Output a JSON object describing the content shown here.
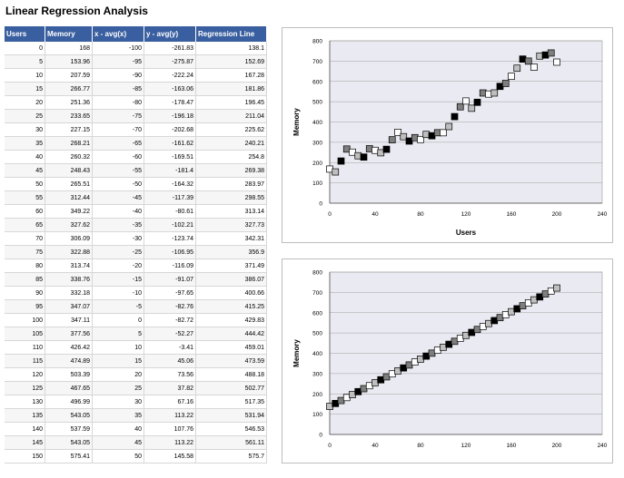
{
  "page": {
    "title": "Linear Regression Analysis"
  },
  "table": {
    "headers": [
      "Users",
      "Memory",
      "x - avg(x)",
      "y - avg(y)",
      "Regression Line"
    ],
    "rows": [
      [
        "0",
        "168",
        "-100",
        "-261.83",
        "138.1"
      ],
      [
        "5",
        "153.96",
        "-95",
        "-275.87",
        "152.69"
      ],
      [
        "10",
        "207.59",
        "-90",
        "-222.24",
        "167.28"
      ],
      [
        "15",
        "266.77",
        "-85",
        "-163.06",
        "181.86"
      ],
      [
        "20",
        "251.36",
        "-80",
        "-178.47",
        "196.45"
      ],
      [
        "25",
        "233.65",
        "-75",
        "-196.18",
        "211.04"
      ],
      [
        "30",
        "227.15",
        "-70",
        "-202.68",
        "225.62"
      ],
      [
        "35",
        "268.21",
        "-65",
        "-161.62",
        "240.21"
      ],
      [
        "40",
        "260.32",
        "-60",
        "-169.51",
        "254.8"
      ],
      [
        "45",
        "248.43",
        "-55",
        "-181.4",
        "269.38"
      ],
      [
        "50",
        "265.51",
        "-50",
        "-164.32",
        "283.97"
      ],
      [
        "55",
        "312.44",
        "-45",
        "-117.39",
        "298.55"
      ],
      [
        "60",
        "349.22",
        "-40",
        "-80.61",
        "313.14"
      ],
      [
        "65",
        "327.62",
        "-35",
        "-102.21",
        "327.73"
      ],
      [
        "70",
        "306.09",
        "-30",
        "-123.74",
        "342.31"
      ],
      [
        "75",
        "322.88",
        "-25",
        "-106.95",
        "356.9"
      ],
      [
        "80",
        "313.74",
        "-20",
        "-116.09",
        "371.49"
      ],
      [
        "85",
        "338.76",
        "-15",
        "-91.07",
        "386.07"
      ],
      [
        "90",
        "332.18",
        "-10",
        "-97.65",
        "400.66"
      ],
      [
        "95",
        "347.07",
        "-5",
        "-82.76",
        "415.25"
      ],
      [
        "100",
        "347.11",
        "0",
        "-82.72",
        "429.83"
      ],
      [
        "105",
        "377.56",
        "5",
        "-52.27",
        "444.42"
      ],
      [
        "110",
        "426.42",
        "10",
        "-3.41",
        "459.01"
      ],
      [
        "115",
        "474.89",
        "15",
        "45.06",
        "473.59"
      ],
      [
        "120",
        "503.39",
        "20",
        "73.56",
        "488.18"
      ],
      [
        "125",
        "467.65",
        "25",
        "37.82",
        "502.77"
      ],
      [
        "130",
        "496.99",
        "30",
        "67.16",
        "517.35"
      ],
      [
        "135",
        "543.05",
        "35",
        "113.22",
        "531.94"
      ],
      [
        "140",
        "537.59",
        "40",
        "107.76",
        "546.53"
      ],
      [
        "145",
        "543.05",
        "45",
        "113.22",
        "561.11"
      ],
      [
        "150",
        "575.41",
        "50",
        "145.58",
        "575.7"
      ]
    ]
  },
  "chart_data": [
    {
      "type": "scatter",
      "title": "",
      "xlabel": "Users",
      "ylabel": "Memory",
      "xlim": [
        0,
        240
      ],
      "ylim": [
        0,
        800
      ],
      "xticks": [
        "0",
        "40",
        "80",
        "120",
        "160",
        "200",
        "240"
      ],
      "yticks": [
        "0",
        "100",
        "200",
        "300",
        "400",
        "500",
        "600",
        "700",
        "800"
      ],
      "grid": true,
      "x": [
        0,
        5,
        10,
        15,
        20,
        25,
        30,
        35,
        40,
        45,
        50,
        55,
        60,
        65,
        70,
        75,
        80,
        85,
        90,
        95,
        100,
        105,
        110,
        115,
        120,
        125,
        130,
        135,
        140,
        145,
        150,
        155,
        160,
        165,
        170,
        175,
        180,
        185,
        190,
        195,
        200
      ],
      "y": [
        168,
        153.96,
        207.59,
        266.77,
        251.36,
        233.65,
        227.15,
        268.21,
        260.32,
        248.43,
        265.51,
        312.44,
        349.22,
        327.62,
        306.09,
        322.88,
        313.74,
        338.76,
        332.18,
        347.07,
        347.11,
        377.56,
        426.42,
        474.89,
        503.39,
        467.65,
        496.99,
        543.05,
        537.59,
        543.05,
        575.41,
        590,
        625,
        665,
        710,
        700,
        670,
        725,
        730,
        740,
        695
      ]
    },
    {
      "type": "scatter",
      "title": "",
      "xlabel": "",
      "ylabel": "Memory",
      "xlim": [
        0,
        240
      ],
      "ylim": [
        0,
        800
      ],
      "xticks": [
        "0",
        "40",
        "80",
        "120",
        "160",
        "200",
        "240"
      ],
      "yticks": [
        "0",
        "100",
        "200",
        "300",
        "400",
        "500",
        "600",
        "700",
        "800"
      ],
      "grid": true,
      "x": [
        0,
        5,
        10,
        15,
        20,
        25,
        30,
        35,
        40,
        45,
        50,
        55,
        60,
        65,
        70,
        75,
        80,
        85,
        90,
        95,
        100,
        105,
        110,
        115,
        120,
        125,
        130,
        135,
        140,
        145,
        150,
        155,
        160,
        165,
        170,
        175,
        180,
        185,
        190,
        195,
        200
      ],
      "y": [
        138.1,
        152.69,
        167.28,
        181.86,
        196.45,
        211.04,
        225.62,
        240.21,
        254.8,
        269.38,
        283.97,
        298.55,
        313.14,
        327.73,
        342.31,
        356.9,
        371.49,
        386.07,
        400.66,
        415.25,
        429.83,
        444.42,
        459.01,
        473.59,
        488.18,
        502.77,
        517.35,
        531.94,
        546.53,
        561.11,
        575.7,
        590.29,
        604.87,
        619.46,
        634.05,
        648.63,
        663.22,
        677.81,
        692.39,
        706.98,
        721.57
      ]
    }
  ]
}
